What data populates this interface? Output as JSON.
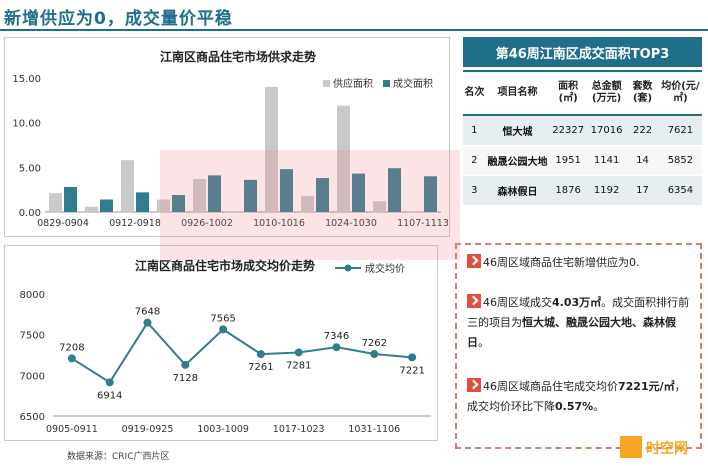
{
  "page_title": "新增供应为0，成交量价平稳",
  "source": "数据来源：CRIC广西片区",
  "logo_text": "时空网",
  "table": {
    "title": "第46周江南区成交面积TOP3",
    "headers": [
      "名次",
      "项目名称",
      "面积(㎡)",
      "总金额(万元)",
      "套数(套)",
      "均价(元/㎡)"
    ],
    "rows": [
      [
        "1",
        "恒大城",
        "22327",
        "17016",
        "222",
        "7621"
      ],
      [
        "2",
        "融晟公园大地",
        "1951",
        "1141",
        "14",
        "5852"
      ],
      [
        "3",
        "森林假日",
        "1876",
        "1192",
        "17",
        "6354"
      ]
    ]
  },
  "notes": [
    {
      "pre": "46周区域商品住宅新增供应为0.",
      "bold": "",
      "post": "",
      "tail": ""
    },
    {
      "pre": "46周区域成交",
      "bold": "4.03万㎡",
      "post": "。成交面积排行前三的项目为",
      "tail": "恒大城、融晟公园大地、森林假日",
      "end": "。"
    },
    {
      "pre": "46周区域商品住宅成交均价",
      "bold": "7221元/㎡",
      "post": "，成交均价环比下降",
      "tail": "0.57%",
      "end": "。"
    }
  ],
  "colors": {
    "supply": "#c9c9c9",
    "deal": "#2f7d8e",
    "price_line": "#2f7d8e",
    "accent": "#1f6f8b"
  },
  "chart_data": [
    {
      "type": "bar",
      "title": "江南区商品住宅市场供求走势",
      "series": [
        {
          "name": "供应面积",
          "values": [
            2.1,
            0.6,
            5.8,
            1.4,
            3.7,
            0,
            14.0,
            1.8,
            11.9,
            1.2,
            0
          ]
        },
        {
          "name": "成交面积",
          "values": [
            2.8,
            1.4,
            2.2,
            1.9,
            4.1,
            3.6,
            4.8,
            3.8,
            4.3,
            4.9,
            4.0
          ]
        }
      ],
      "x_tick_labels": [
        "0829-0904",
        "0912-0918",
        "0926-1002",
        "1010-1016",
        "1024-1030",
        "1107-1113"
      ],
      "y_tick_labels": [
        "0.00",
        "5.00",
        "10.00",
        "15.00"
      ],
      "ylim": [
        0,
        15
      ],
      "legend": "top-right"
    },
    {
      "type": "line",
      "title": "江南区商品住宅市场成交均价走势",
      "series": [
        {
          "name": "成交均价",
          "values": [
            7208,
            6914,
            7648,
            7128,
            7565,
            7261,
            7281,
            7346,
            7262,
            7221
          ]
        }
      ],
      "x_tick_labels": [
        "0905-0911",
        "0919-0925",
        "1003-1009",
        "1017-1023",
        "1031-1106"
      ],
      "y_tick_labels": [
        "6500",
        "7000",
        "7500",
        "8000"
      ],
      "ylim": [
        6500,
        8000
      ],
      "legend": "top-right"
    }
  ]
}
